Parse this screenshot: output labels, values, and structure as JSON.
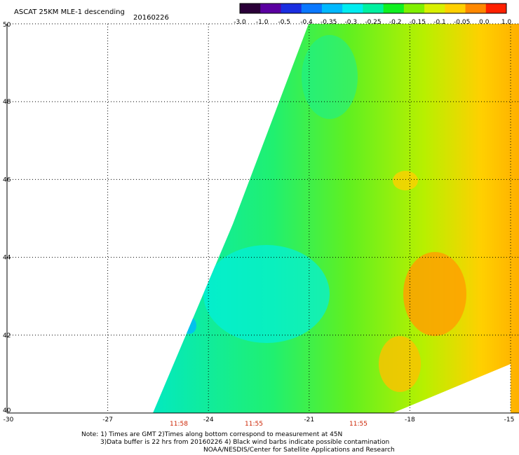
{
  "header": {
    "title": "ASCAT 25KM MLE-1 descending",
    "date": "20160226"
  },
  "map": {
    "lat_range": [
      40,
      50
    ],
    "lon_range": [
      -30,
      -15
    ],
    "lat_ticks": [
      "40",
      "42",
      "44",
      "46",
      "48",
      "50"
    ],
    "lon_ticks": [
      "-30",
      "-27",
      "-24",
      "-21",
      "-18",
      "-15"
    ],
    "grid": true
  },
  "colorbar": {
    "labels": [
      "-3.0",
      "-1.0",
      "-0.5",
      "-0.4",
      "-0.35",
      "-0.3",
      "-0.25",
      "-0.2",
      "-0.15",
      "-0.1",
      "-0.05",
      "0.0",
      "1.0"
    ],
    "colors": [
      "#2a0038",
      "#5a00a0",
      "#1a2ee0",
      "#0a78ff",
      "#00b8ff",
      "#00ecf0",
      "#00f0a0",
      "#10f020",
      "#80f000",
      "#d8f000",
      "#ffd000",
      "#ff8800",
      "#ff2000"
    ]
  },
  "times": [
    "11:58",
    "11:55",
    "11:55"
  ],
  "notes": {
    "line1": "Note: 1) Times are GMT 2)Times along bottom correspond to measurement at 45N",
    "line2": "3)Data buffer is 22 hrs from 20160226 4) Black wind barbs indicate possible contamination",
    "line3": "NOAA/NESDIS/Center for Satellite Applications and Research"
  }
}
